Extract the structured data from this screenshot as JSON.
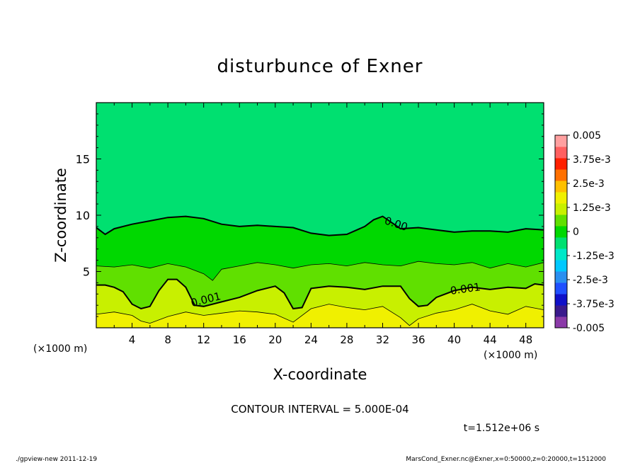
{
  "chart_data": {
    "type": "heatmap",
    "title": "disturbunce of Exner",
    "xlabel": "X-coordinate",
    "ylabel": "Z-coordinate",
    "x_unit": "(×1000 m)",
    "x_ticks": [
      4,
      8,
      12,
      16,
      20,
      24,
      28,
      32,
      36,
      40,
      44,
      48
    ],
    "y_ticks": [
      5,
      10,
      15
    ],
    "xlim": [
      0,
      50
    ],
    "ylim": [
      0,
      20
    ],
    "colorbar": {
      "labels": [
        "0.005",
        "3.75e-3",
        "2.5e-3",
        "1.25e-3",
        "0",
        "-1.25e-3",
        "-2.5e-3",
        "-3.75e-3",
        "-0.005"
      ],
      "range": [
        -0.005,
        0.005
      ],
      "colors": [
        "#8b3aa8",
        "#3a1a8c",
        "#1010c8",
        "#2050ff",
        "#2a8ff0",
        "#00c8ff",
        "#00e8c8",
        "#00e070",
        "#00d800",
        "#60e000",
        "#c8f000",
        "#f0f000",
        "#ffc000",
        "#ff7000",
        "#ff2000",
        "#ff6060",
        "#ffa0a0"
      ]
    },
    "contour_labels": [
      "0.00",
      "0.001",
      "0.001"
    ],
    "contour_interval_text": "CONTOUR INTERVAL = 5.000E-04",
    "time_text": "t=1.512e+06 s",
    "zero_contour": {
      "x": [
        0,
        1,
        2,
        4,
        6,
        8,
        10,
        12,
        14,
        16,
        18,
        20,
        22,
        24,
        26,
        28,
        30,
        31,
        32,
        34,
        36,
        38,
        40,
        42,
        44,
        46,
        48,
        50
      ],
      "z": [
        8.9,
        8.3,
        8.8,
        9.2,
        9.5,
        9.8,
        9.9,
        9.7,
        9.2,
        9.0,
        9.1,
        9.0,
        8.9,
        8.4,
        8.2,
        8.3,
        9.0,
        9.6,
        9.9,
        8.8,
        8.9,
        8.7,
        8.5,
        8.6,
        8.6,
        8.5,
        8.8,
        8.7
      ]
    },
    "contour_0005": {
      "x": [
        0,
        2,
        4,
        6,
        8,
        10,
        12,
        13,
        14,
        16,
        18,
        20,
        22,
        24,
        26,
        28,
        30,
        32,
        34,
        36,
        38,
        40,
        42,
        44,
        46,
        48,
        50
      ],
      "z": [
        5.5,
        5.4,
        5.6,
        5.3,
        5.7,
        5.4,
        4.8,
        4.2,
        5.2,
        5.5,
        5.8,
        5.6,
        5.3,
        5.6,
        5.7,
        5.5,
        5.8,
        5.6,
        5.5,
        5.9,
        5.7,
        5.6,
        5.8,
        5.3,
        5.7,
        5.4,
        5.8
      ]
    },
    "contour_001": {
      "x": [
        0,
        1,
        2,
        3,
        4,
        5,
        6,
        7,
        8,
        9,
        10,
        11,
        12,
        14,
        16,
        18,
        20,
        21,
        22,
        23,
        24,
        26,
        28,
        30,
        32,
        34,
        35,
        36,
        37,
        38,
        40,
        42,
        44,
        46,
        48,
        49,
        50
      ],
      "z": [
        3.8,
        3.8,
        3.6,
        3.2,
        2.1,
        1.7,
        1.9,
        3.3,
        4.3,
        4.3,
        3.6,
        2.0,
        1.9,
        2.3,
        2.7,
        3.3,
        3.7,
        3.1,
        1.7,
        1.8,
        3.5,
        3.7,
        3.6,
        3.4,
        3.7,
        3.7,
        2.6,
        1.9,
        2.0,
        2.7,
        3.3,
        3.6,
        3.4,
        3.6,
        3.5,
        3.9,
        3.8
      ]
    },
    "contour_0015": {
      "x": [
        0,
        2,
        4,
        5,
        6,
        8,
        10,
        12,
        14,
        16,
        18,
        20,
        22,
        24,
        26,
        28,
        30,
        32,
        34,
        35,
        36,
        38,
        40,
        42,
        44,
        46,
        48,
        50
      ],
      "z": [
        1.2,
        1.4,
        1.1,
        0.6,
        0.4,
        1.0,
        1.4,
        1.1,
        1.3,
        1.5,
        1.4,
        1.2,
        0.5,
        1.7,
        2.1,
        1.8,
        1.6,
        1.9,
        0.9,
        0.2,
        0.8,
        1.3,
        1.6,
        2.1,
        1.5,
        1.2,
        1.9,
        1.6
      ]
    }
  },
  "footer_left": "./gpview-new   2011-12-19",
  "footer_right": "MarsCond_Exner.nc@Exner,x=0:50000,z=0:20000,t=1512000"
}
